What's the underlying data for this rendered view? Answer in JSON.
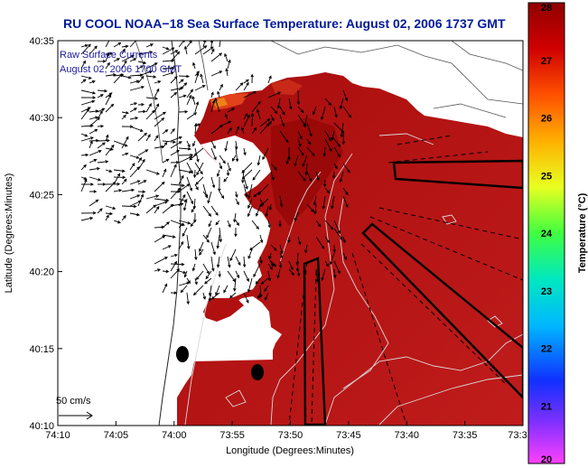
{
  "title": "RU COOL  NOAA−18  Sea Surface Temperature:  August 02, 2006 1737 GMT",
  "annotation": {
    "line1": "Raw Surface Currents",
    "line2": "August 02, 2006 1700 GMT"
  },
  "scale": {
    "label": "50 cm/s"
  },
  "axes": {
    "xlabel": "Longitude (Degrees:Minutes)",
    "ylabel": "Latitude (Degrees:Minutes)",
    "xticks": [
      "74:10",
      "74:05",
      "74:00",
      "73:55",
      "73:50",
      "73:45",
      "73:40",
      "73:35",
      "73:3"
    ],
    "yticks": [
      "40:35",
      "40:30",
      "40:25",
      "40:20",
      "40:15",
      "40:10"
    ]
  },
  "colorbar": {
    "label": "Temperature (°C)",
    "ticks": [
      "28",
      "27",
      "26",
      "25",
      "24",
      "23",
      "22",
      "21",
      "20"
    ],
    "min": 20,
    "max": 28
  },
  "colors": {
    "title": "#001a9a",
    "sst_main": "#b31010",
    "sst_dark": "#8f0000",
    "sst_warm": "#e0421a",
    "sst_orange": "#f08018"
  },
  "icons": [
    "current-vector-icon",
    "mooring-marker-icon"
  ]
}
